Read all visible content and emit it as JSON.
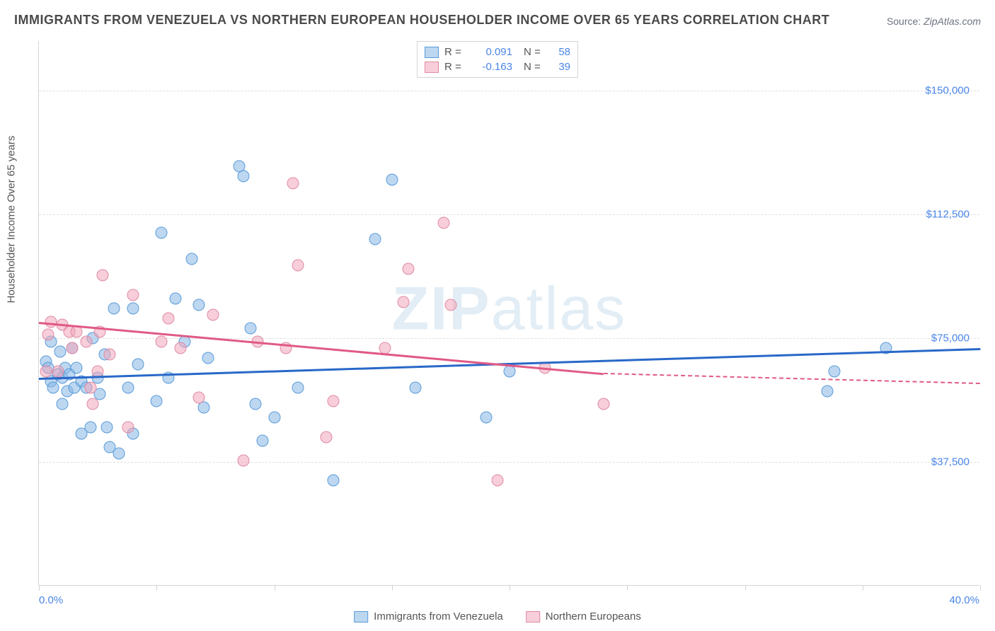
{
  "title": "IMMIGRANTS FROM VENEZUELA VS NORTHERN EUROPEAN HOUSEHOLDER INCOME OVER 65 YEARS CORRELATION CHART",
  "source_label": "Source:",
  "source_value": "ZipAtlas.com",
  "y_axis_label": "Householder Income Over 65 years",
  "chart": {
    "type": "scatter",
    "x_min": 0.0,
    "x_max": 40.0,
    "x_min_label": "0.0%",
    "x_max_label": "40.0%",
    "x_tick_step": 5.0,
    "y_min": 0,
    "y_max": 165000,
    "y_tick_labels": [
      "$37,500",
      "$75,000",
      "$112,500",
      "$150,000"
    ],
    "y_tick_values": [
      37500,
      75000,
      112500,
      150000
    ],
    "background_color": "#ffffff",
    "grid_color": "#e0e0e0",
    "axis_color": "#d5d5d5",
    "tick_label_color": "#4a86e8",
    "axis_label_color": "#555555",
    "title_color": "#4a4a4a",
    "title_fontsize": 18,
    "label_fontsize": 15,
    "marker_size": 17,
    "series": [
      {
        "name": "Immigrants from Venezuela",
        "color_fill": "rgba(135,182,230,0.55)",
        "color_stroke": "#5a9bd8",
        "trend_color": "#2968c8",
        "R": "0.091",
        "N": "58",
        "trend": {
          "x0": 0,
          "y0": 63000,
          "x1": 40,
          "y1": 72000
        },
        "points": [
          [
            0.3,
            68000
          ],
          [
            0.4,
            66000
          ],
          [
            0.5,
            62000
          ],
          [
            0.5,
            74000
          ],
          [
            0.6,
            60000
          ],
          [
            0.8,
            64000
          ],
          [
            0.9,
            71000
          ],
          [
            1.0,
            55000
          ],
          [
            1.0,
            63000
          ],
          [
            1.1,
            66000
          ],
          [
            1.2,
            59000
          ],
          [
            1.3,
            64000
          ],
          [
            1.4,
            72000
          ],
          [
            1.5,
            60000
          ],
          [
            1.6,
            66000
          ],
          [
            1.8,
            62000
          ],
          [
            1.8,
            46000
          ],
          [
            2.0,
            60000
          ],
          [
            2.2,
            48000
          ],
          [
            2.3,
            75000
          ],
          [
            2.5,
            63000
          ],
          [
            2.6,
            58000
          ],
          [
            2.8,
            70000
          ],
          [
            2.9,
            48000
          ],
          [
            3.0,
            42000
          ],
          [
            3.2,
            84000
          ],
          [
            3.4,
            40000
          ],
          [
            3.8,
            60000
          ],
          [
            4.0,
            46000
          ],
          [
            4.0,
            84000
          ],
          [
            4.2,
            67000
          ],
          [
            5.0,
            56000
          ],
          [
            5.2,
            107000
          ],
          [
            5.5,
            63000
          ],
          [
            5.8,
            87000
          ],
          [
            6.2,
            74000
          ],
          [
            6.5,
            99000
          ],
          [
            6.8,
            85000
          ],
          [
            7.0,
            54000
          ],
          [
            7.2,
            69000
          ],
          [
            8.5,
            127000
          ],
          [
            8.7,
            124000
          ],
          [
            9.0,
            78000
          ],
          [
            9.2,
            55000
          ],
          [
            9.5,
            44000
          ],
          [
            10.0,
            51000
          ],
          [
            11.0,
            60000
          ],
          [
            12.5,
            32000
          ],
          [
            14.3,
            105000
          ],
          [
            15.0,
            123000
          ],
          [
            16.0,
            60000
          ],
          [
            19.0,
            51000
          ],
          [
            20.0,
            65000
          ],
          [
            33.5,
            59000
          ],
          [
            33.8,
            65000
          ],
          [
            36.0,
            72000
          ]
        ]
      },
      {
        "name": "Northern Europeans",
        "color_fill": "rgba(240,165,185,0.55)",
        "color_stroke": "#e08aa5",
        "trend_color": "#e05a85",
        "R": "-0.163",
        "N": "39",
        "trend": {
          "x0": 0,
          "y0": 80000,
          "x1": 24,
          "y1": 64500
        },
        "trend_dashed": {
          "x0": 24,
          "y0": 64500,
          "x1": 40,
          "y1": 61500
        },
        "points": [
          [
            0.3,
            65000
          ],
          [
            0.4,
            76000
          ],
          [
            0.5,
            80000
          ],
          [
            0.8,
            65000
          ],
          [
            1.0,
            79000
          ],
          [
            1.3,
            77000
          ],
          [
            1.4,
            72000
          ],
          [
            1.6,
            77000
          ],
          [
            2.0,
            74000
          ],
          [
            2.2,
            60000
          ],
          [
            2.3,
            55000
          ],
          [
            2.5,
            65000
          ],
          [
            2.6,
            77000
          ],
          [
            2.7,
            94000
          ],
          [
            3.0,
            70000
          ],
          [
            3.8,
            48000
          ],
          [
            4.0,
            88000
          ],
          [
            5.2,
            74000
          ],
          [
            5.5,
            81000
          ],
          [
            6.0,
            72000
          ],
          [
            6.8,
            57000
          ],
          [
            7.4,
            82000
          ],
          [
            8.7,
            38000
          ],
          [
            9.3,
            74000
          ],
          [
            10.5,
            72000
          ],
          [
            10.8,
            122000
          ],
          [
            11.0,
            97000
          ],
          [
            12.2,
            45000
          ],
          [
            12.5,
            56000
          ],
          [
            14.7,
            72000
          ],
          [
            15.5,
            86000
          ],
          [
            15.7,
            96000
          ],
          [
            17.2,
            110000
          ],
          [
            17.5,
            85000
          ],
          [
            19.5,
            32000
          ],
          [
            21.5,
            66000
          ],
          [
            24.0,
            55000
          ]
        ]
      }
    ]
  },
  "legend_bottom": [
    {
      "swatch": "blue",
      "label": "Immigrants from Venezuela"
    },
    {
      "swatch": "pink",
      "label": "Northern Europeans"
    }
  ],
  "watermark": "ZIPatlas"
}
